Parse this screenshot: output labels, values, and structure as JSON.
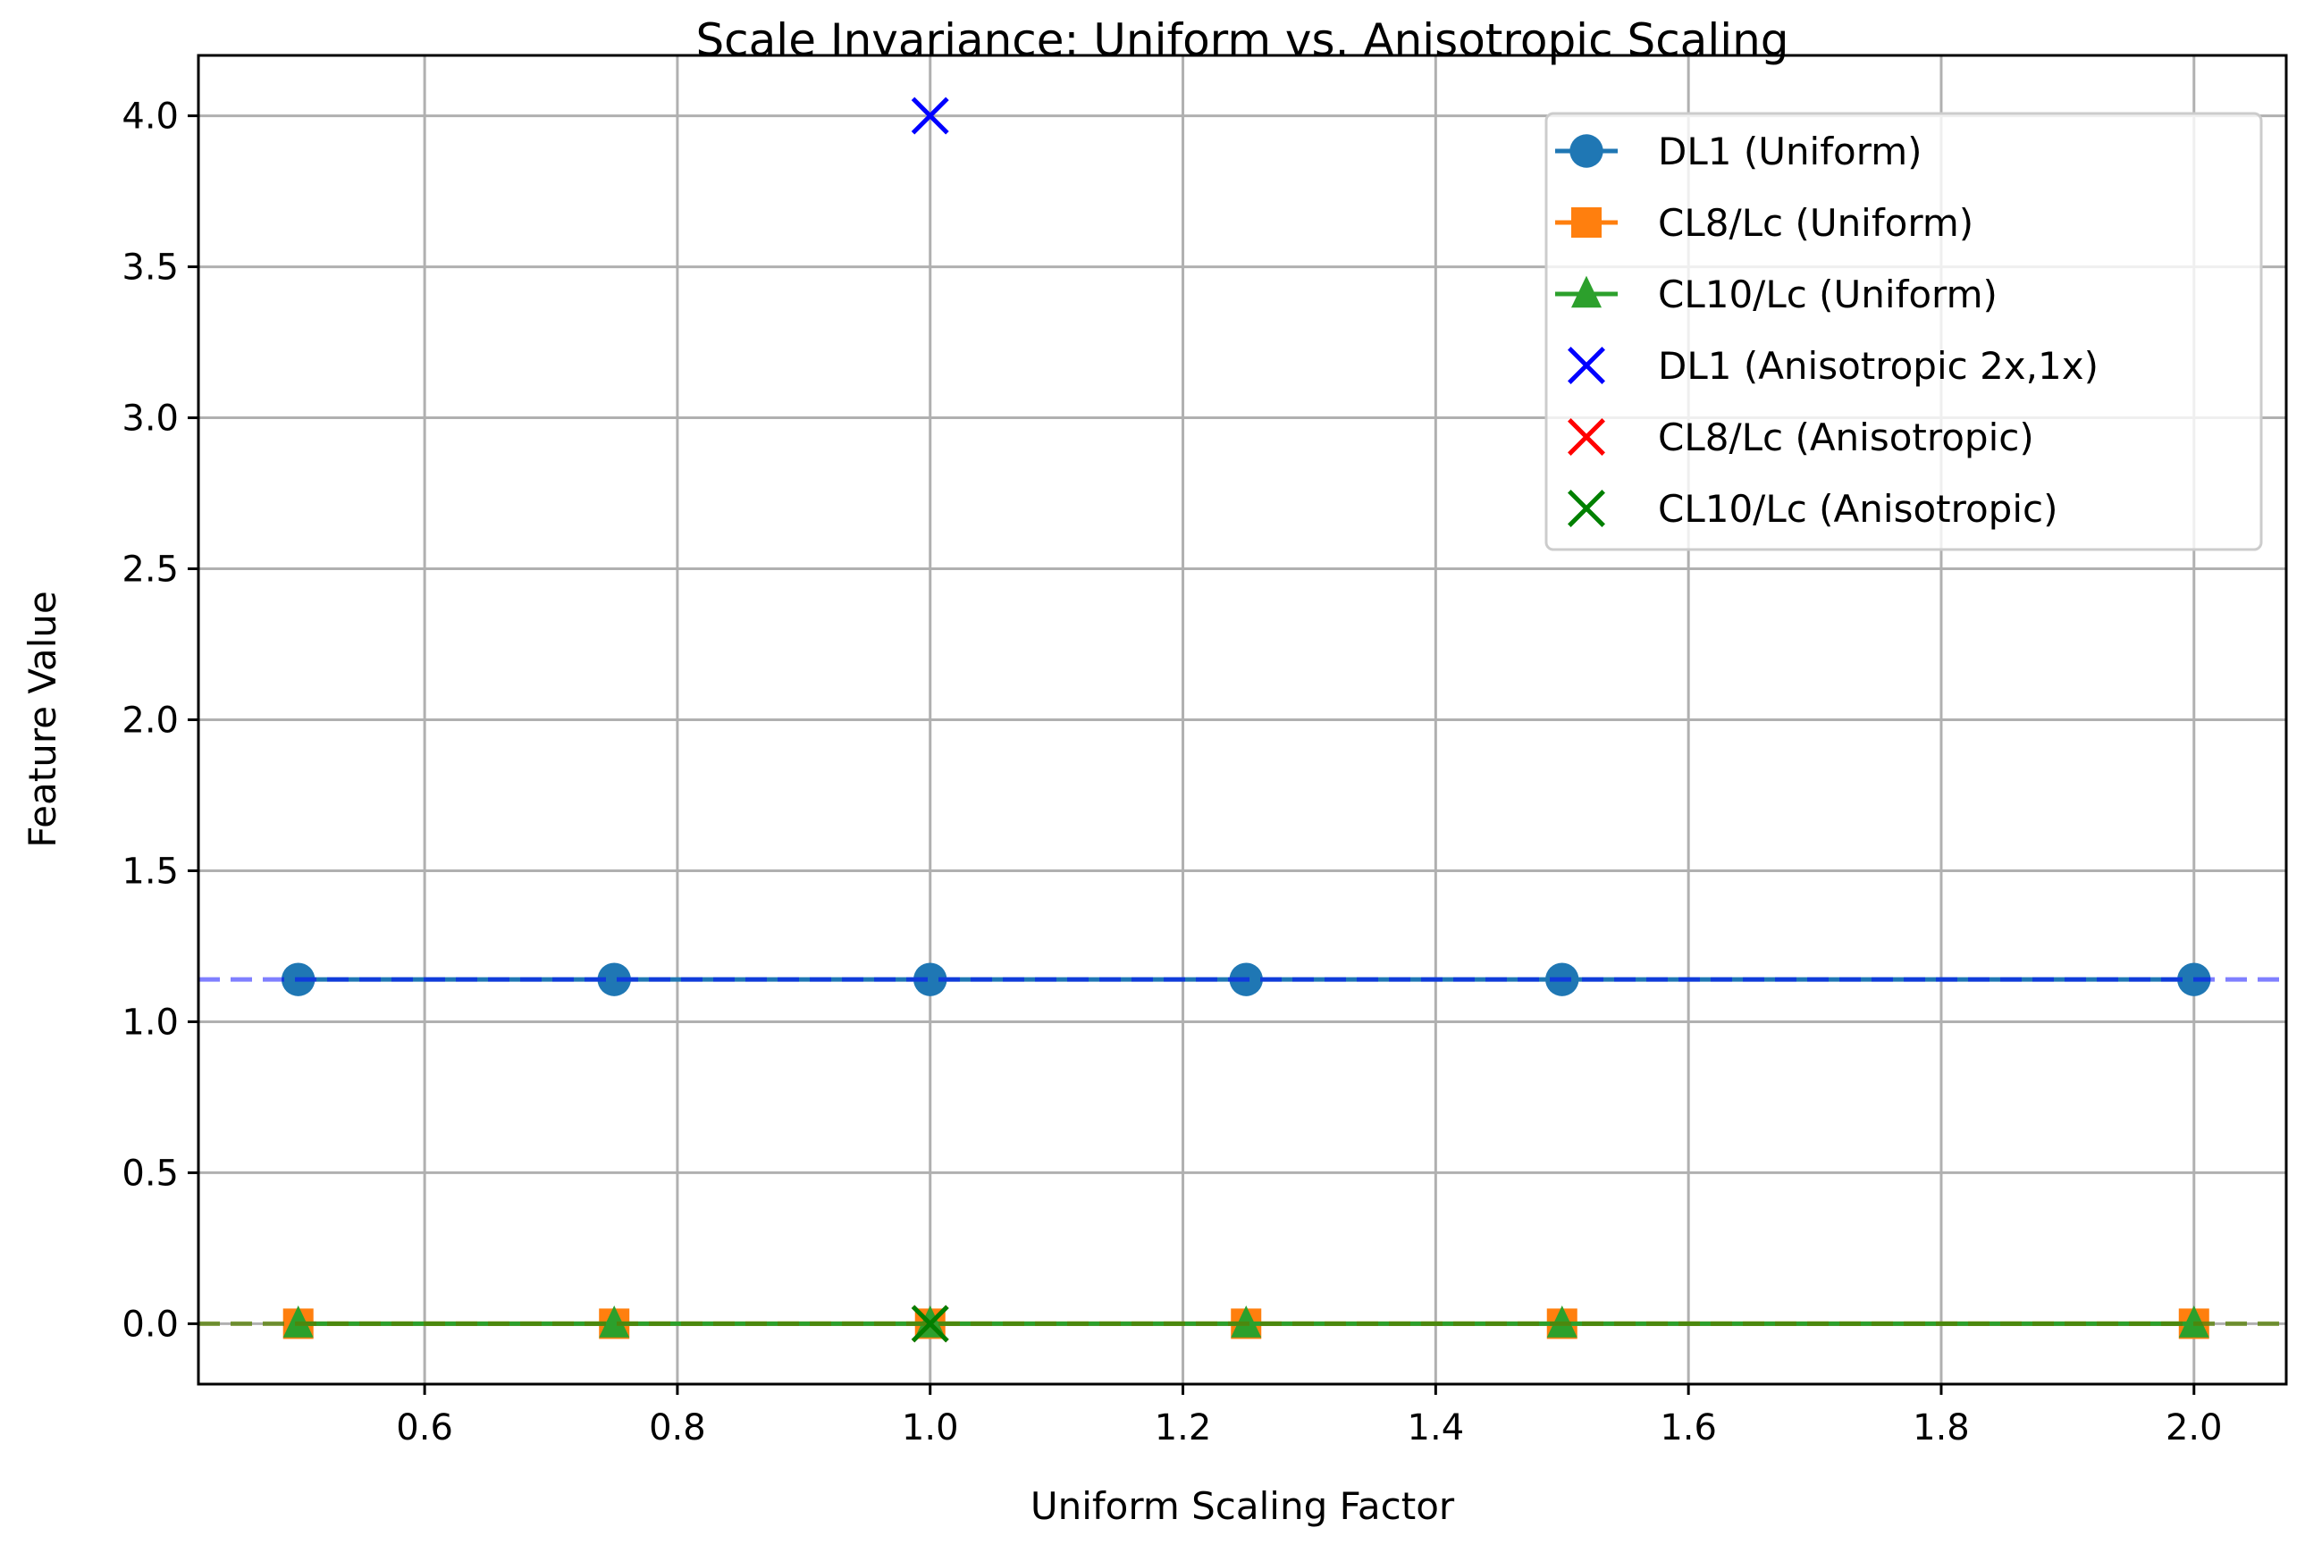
{
  "chart_data": {
    "type": "line",
    "title": "Scale Invariance: Uniform vs. Anisotropic Scaling",
    "xlabel": "Uniform Scaling Factor",
    "ylabel": "Feature Value",
    "xlim": [
      0.421,
      2.073
    ],
    "ylim": [
      -0.2,
      4.2
    ],
    "xticks": [
      0.6,
      0.8,
      1.0,
      1.2,
      1.4,
      1.6,
      1.8,
      2.0
    ],
    "xtick_labels": [
      "0.6",
      "0.8",
      "1.0",
      "1.2",
      "1.4",
      "1.6",
      "1.8",
      "2.0"
    ],
    "yticks": [
      0.0,
      0.5,
      1.0,
      1.5,
      2.0,
      2.5,
      3.0,
      3.5,
      4.0
    ],
    "ytick_labels": [
      "0.0",
      "0.5",
      "1.0",
      "1.5",
      "2.0",
      "2.5",
      "3.0",
      "3.5",
      "4.0"
    ],
    "grid": true,
    "legend_position": "upper right",
    "x": [
      0.5,
      0.75,
      1.0,
      1.25,
      1.5,
      2.0
    ],
    "series": [
      {
        "name": "DL1 (Uniform)",
        "values": [
          1.14,
          1.14,
          1.14,
          1.14,
          1.14,
          1.14
        ],
        "color": "#1f77b4",
        "marker": "circle",
        "line": "solid"
      },
      {
        "name": "CL8/Lc (Uniform)",
        "values": [
          0.0,
          0.0,
          0.0,
          0.0,
          0.0,
          0.0
        ],
        "color": "#ff7f0e",
        "marker": "square",
        "line": "solid"
      },
      {
        "name": "CL10/Lc (Uniform)",
        "values": [
          0.0,
          0.0,
          0.0,
          0.0,
          0.0,
          0.0
        ],
        "color": "#2ca02c",
        "marker": "triangle",
        "line": "solid"
      },
      {
        "name": "DL1 (Anisotropic 2x,1x)",
        "x": [
          1.0
        ],
        "values": [
          4.0
        ],
        "color": "#0000ff",
        "marker": "x",
        "line": "none"
      },
      {
        "name": "CL8/Lc (Anisotropic)",
        "x": [
          1.0
        ],
        "values": [
          0.0
        ],
        "color": "#ff0000",
        "marker": "x",
        "line": "none"
      },
      {
        "name": "CL10/Lc (Anisotropic)",
        "x": [
          1.0
        ],
        "values": [
          0.0
        ],
        "color": "#008000",
        "marker": "x",
        "line": "none"
      }
    ],
    "reference_lines": [
      {
        "y": 1.14,
        "color": "#0000ff",
        "style": "dashed",
        "alpha": 0.5
      },
      {
        "y": 0.0,
        "color": "#ff7f0e",
        "style": "dashed",
        "alpha": 0.5
      },
      {
        "y": 0.0,
        "color": "#008000",
        "style": "dashed",
        "alpha": 0.5
      }
    ]
  }
}
